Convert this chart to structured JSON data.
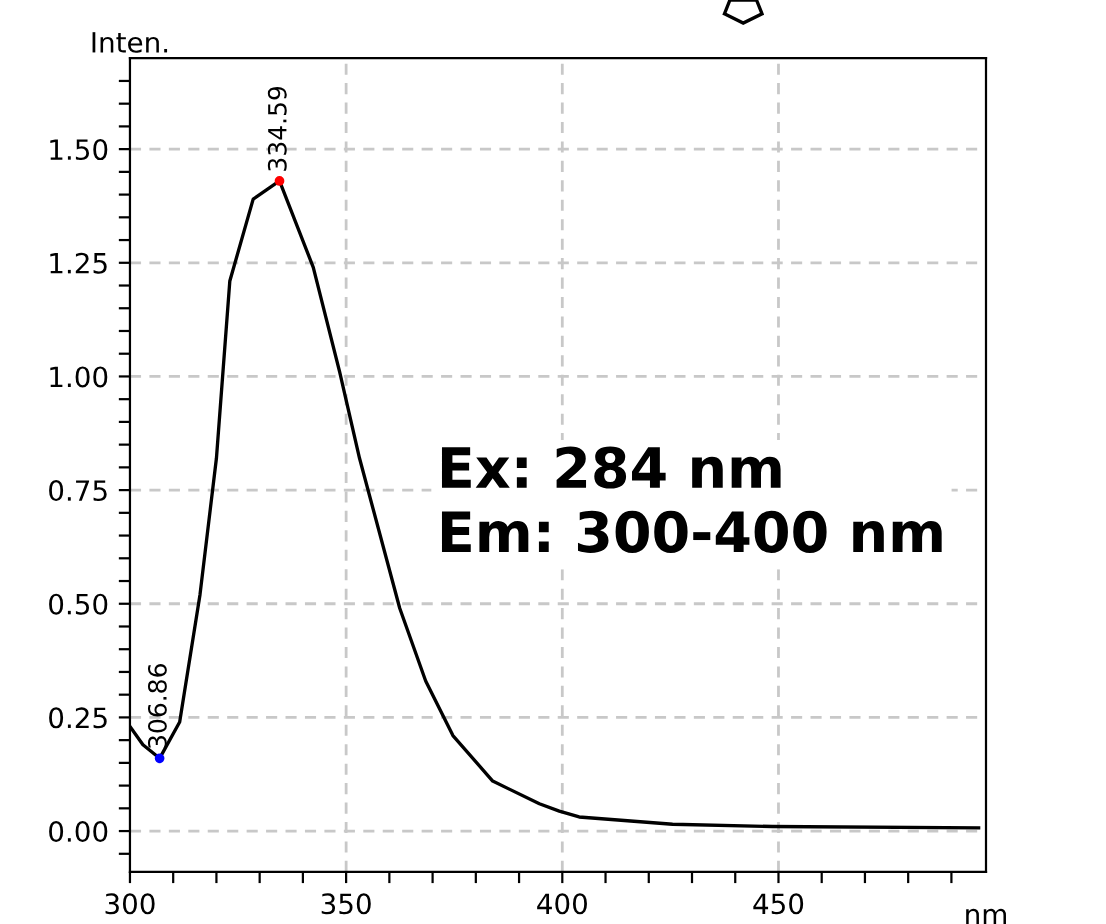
{
  "chart_data": {
    "type": "line",
    "xlabel": "nm",
    "ylabel": "Inten.",
    "x": [
      300,
      303,
      306.86,
      311.5,
      316.2,
      320,
      323.1,
      328.5,
      334.59,
      342.4,
      348.5,
      353.1,
      362.4,
      368.4,
      374.7,
      383.9,
      394.7,
      399.3,
      403.9,
      425.5,
      448.6,
      496.3
    ],
    "series": [
      {
        "color": "#000000",
        "values": [
          0.23,
          0.19,
          0.16,
          0.24,
          0.52,
          0.82,
          1.21,
          1.39,
          1.43,
          1.24,
          1.01,
          0.82,
          0.49,
          0.33,
          0.21,
          0.11,
          0.06,
          0.044,
          0.031,
          0.015,
          0.01,
          0.007
        ]
      }
    ],
    "xlim": [
      300,
      498
    ],
    "ylim": [
      -0.09,
      1.7
    ],
    "xticks": [
      300,
      {
        "value": 310,
        "label": null
      },
      {
        "value": 320,
        "label": null
      },
      {
        "value": 330,
        "label": null
      },
      {
        "value": 340,
        "label": null
      },
      350,
      {
        "value": 360,
        "label": null
      },
      {
        "value": 370,
        "label": null
      },
      {
        "value": 380,
        "label": null
      },
      {
        "value": 390,
        "label": null
      },
      400,
      {
        "value": 410,
        "label": null
      },
      {
        "value": 420,
        "label": null
      },
      {
        "value": 430,
        "label": null
      },
      {
        "value": 440,
        "label": null
      },
      450,
      {
        "value": 460,
        "label": null
      },
      {
        "value": 470,
        "label": null
      },
      {
        "value": 480,
        "label": null
      },
      {
        "value": 490,
        "label": null
      }
    ],
    "yticks": [
      {
        "value": -0.05,
        "label": null
      },
      {
        "value": 0,
        "label": "0.00"
      },
      {
        "value": 0.05,
        "label": null
      },
      {
        "value": 0.1,
        "label": null
      },
      {
        "value": 0.15,
        "label": null
      },
      {
        "value": 0.2,
        "label": null
      },
      {
        "value": 0.25,
        "label": "0.25"
      },
      {
        "value": 0.3,
        "label": null
      },
      {
        "value": 0.35,
        "label": null
      },
      {
        "value": 0.4,
        "label": null
      },
      {
        "value": 0.45,
        "label": null
      },
      {
        "value": 0.5,
        "label": "0.50"
      },
      {
        "value": 0.55,
        "label": null
      },
      {
        "value": 0.6,
        "label": null
      },
      {
        "value": 0.65,
        "label": null
      },
      {
        "value": 0.7,
        "label": null
      },
      {
        "value": 0.75,
        "label": "0.75"
      },
      {
        "value": 0.8,
        "label": null
      },
      {
        "value": 0.85,
        "label": null
      },
      {
        "value": 0.9,
        "label": null
      },
      {
        "value": 0.95,
        "label": null
      },
      {
        "value": 1.0,
        "label": "1.00"
      },
      {
        "value": 1.05,
        "label": null
      },
      {
        "value": 1.1,
        "label": null
      },
      {
        "value": 1.15,
        "label": null
      },
      {
        "value": 1.2,
        "label": null
      },
      {
        "value": 1.25,
        "label": "1.25"
      },
      {
        "value": 1.3,
        "label": null
      },
      {
        "value": 1.35,
        "label": null
      },
      {
        "value": 1.4,
        "label": null
      },
      {
        "value": 1.45,
        "label": null
      },
      {
        "value": 1.5,
        "label": "1.50"
      },
      {
        "value": 1.55,
        "label": null
      },
      {
        "value": 1.6,
        "label": null
      },
      {
        "value": 1.65,
        "label": null
      }
    ],
    "grid": true,
    "marker": "none",
    "line_style": "solid",
    "annotations": [
      {
        "text": "334.59",
        "x": 334.59,
        "y": 1.43
      },
      {
        "text": "306.86",
        "x": 306.86,
        "y": 0.16
      },
      "Ex: 284 nm\nEm: 300-400 nm"
    ]
  }
}
